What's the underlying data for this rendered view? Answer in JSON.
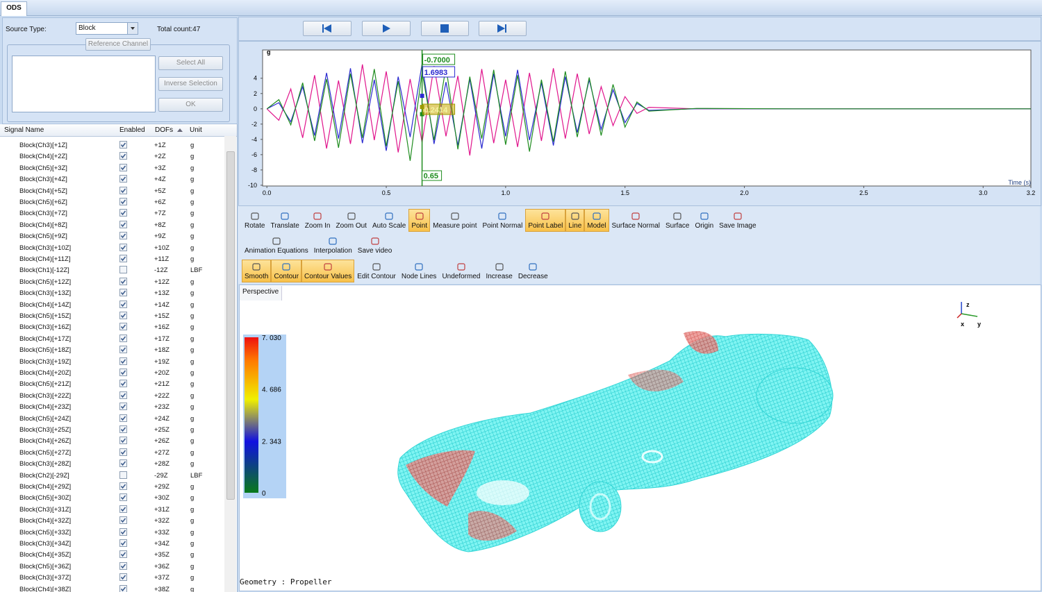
{
  "tab": "ODS",
  "source": {
    "label": "Source Type:",
    "value": "Block",
    "total": "Total count:47"
  },
  "reference": {
    "title": "Reference Channel",
    "buttons": [
      "Select All",
      "Inverse Selection",
      "OK"
    ]
  },
  "table": {
    "headers": [
      "Signal Name",
      "Enabled",
      "DOFs",
      "Unit"
    ],
    "rows": [
      [
        "Block(Ch3)[+1Z]",
        true,
        "+1Z",
        "g"
      ],
      [
        "Block(Ch4)[+2Z]",
        true,
        "+2Z",
        "g"
      ],
      [
        "Block(Ch5)[+3Z]",
        true,
        "+3Z",
        "g"
      ],
      [
        "Block(Ch3)[+4Z]",
        true,
        "+4Z",
        "g"
      ],
      [
        "Block(Ch4)[+5Z]",
        true,
        "+5Z",
        "g"
      ],
      [
        "Block(Ch5)[+6Z]",
        true,
        "+6Z",
        "g"
      ],
      [
        "Block(Ch3)[+7Z]",
        true,
        "+7Z",
        "g"
      ],
      [
        "Block(Ch4)[+8Z]",
        true,
        "+8Z",
        "g"
      ],
      [
        "Block(Ch5)[+9Z]",
        true,
        "+9Z",
        "g"
      ],
      [
        "Block(Ch3)[+10Z]",
        true,
        "+10Z",
        "g"
      ],
      [
        "Block(Ch4)[+11Z]",
        true,
        "+11Z",
        "g"
      ],
      [
        "Block(Ch1)[-12Z]",
        false,
        "-12Z",
        "LBF"
      ],
      [
        "Block(Ch5)[+12Z]",
        true,
        "+12Z",
        "g"
      ],
      [
        "Block(Ch3)[+13Z]",
        true,
        "+13Z",
        "g"
      ],
      [
        "Block(Ch4)[+14Z]",
        true,
        "+14Z",
        "g"
      ],
      [
        "Block(Ch5)[+15Z]",
        true,
        "+15Z",
        "g"
      ],
      [
        "Block(Ch3)[+16Z]",
        true,
        "+16Z",
        "g"
      ],
      [
        "Block(Ch4)[+17Z]",
        true,
        "+17Z",
        "g"
      ],
      [
        "Block(Ch5)[+18Z]",
        true,
        "+18Z",
        "g"
      ],
      [
        "Block(Ch3)[+19Z]",
        true,
        "+19Z",
        "g"
      ],
      [
        "Block(Ch4)[+20Z]",
        true,
        "+20Z",
        "g"
      ],
      [
        "Block(Ch5)[+21Z]",
        true,
        "+21Z",
        "g"
      ],
      [
        "Block(Ch3)[+22Z]",
        true,
        "+22Z",
        "g"
      ],
      [
        "Block(Ch4)[+23Z]",
        true,
        "+23Z",
        "g"
      ],
      [
        "Block(Ch5)[+24Z]",
        true,
        "+24Z",
        "g"
      ],
      [
        "Block(Ch3)[+25Z]",
        true,
        "+25Z",
        "g"
      ],
      [
        "Block(Ch4)[+26Z]",
        true,
        "+26Z",
        "g"
      ],
      [
        "Block(Ch5)[+27Z]",
        true,
        "+27Z",
        "g"
      ],
      [
        "Block(Ch3)[+28Z]",
        true,
        "+28Z",
        "g"
      ],
      [
        "Block(Ch2)[-29Z]",
        false,
        "-29Z",
        "LBF"
      ],
      [
        "Block(Ch4)[+29Z]",
        true,
        "+29Z",
        "g"
      ],
      [
        "Block(Ch5)[+30Z]",
        true,
        "+30Z",
        "g"
      ],
      [
        "Block(Ch3)[+31Z]",
        true,
        "+31Z",
        "g"
      ],
      [
        "Block(Ch4)[+32Z]",
        true,
        "+32Z",
        "g"
      ],
      [
        "Block(Ch5)[+33Z]",
        true,
        "+33Z",
        "g"
      ],
      [
        "Block(Ch3)[+34Z]",
        true,
        "+34Z",
        "g"
      ],
      [
        "Block(Ch4)[+35Z]",
        true,
        "+35Z",
        "g"
      ],
      [
        "Block(Ch5)[+36Z]",
        true,
        "+36Z",
        "g"
      ],
      [
        "Block(Ch3)[+37Z]",
        true,
        "+37Z",
        "g"
      ],
      [
        "Block(Ch4)[+38Z]",
        true,
        "+38Z",
        "g"
      ]
    ]
  },
  "chart_data": {
    "type": "line",
    "y_label": "g",
    "x_label": "Time (s)",
    "x": [
      0,
      0.05,
      0.1,
      0.15,
      0.2,
      0.25,
      0.3,
      0.35,
      0.4,
      0.45,
      0.5,
      0.55,
      0.6,
      0.65,
      0.7,
      0.75,
      0.8,
      0.85,
      0.9,
      0.95,
      1.0,
      1.05,
      1.1,
      1.15,
      1.2,
      1.25,
      1.3,
      1.35,
      1.4,
      1.45,
      1.5,
      1.55,
      1.6,
      1.8,
      2.2,
      2.6,
      3.0,
      3.2
    ],
    "series": [
      {
        "color": "#e0148c",
        "values": [
          0,
          -1.5,
          2.6,
          -3.8,
          4.4,
          -5.2,
          3.7,
          -4.6,
          5.8,
          -4.1,
          4.9,
          -5.7,
          3.9,
          -4.4,
          5.6,
          -3.6,
          4.3,
          -6.1,
          5.2,
          -4.5,
          3.8,
          -5.0,
          4.7,
          -4.2,
          5.3,
          -3.9,
          4.6,
          -3.3,
          2.9,
          -2.2,
          1.6,
          -0.6,
          0.2,
          0,
          0,
          0,
          0,
          0
        ]
      },
      {
        "color": "#2a2ad0",
        "values": [
          0,
          0.8,
          -1.7,
          2.9,
          -3.5,
          4.7,
          -3.9,
          5.3,
          -4.5,
          3.8,
          -5.5,
          4.2,
          -3.7,
          5.9,
          -4.6,
          3.5,
          -4.8,
          3.9,
          -5.2,
          4.6,
          -3.6,
          5.1,
          -4.1,
          3.4,
          -4.8,
          4.2,
          -3.1,
          3.8,
          -2.7,
          2.5,
          -1.8,
          0.7,
          -0.2,
          0.02,
          0,
          0,
          0,
          0
        ]
      },
      {
        "color": "#1e8c1e",
        "values": [
          0,
          1.2,
          -2.1,
          3.4,
          -4.2,
          3.9,
          -5.1,
          4.6,
          -3.8,
          5.2,
          -4.9,
          3.6,
          -6.8,
          4.8,
          -4.1,
          5.5,
          -5.3,
          4.2,
          -3.9,
          5.1,
          -4.7,
          4.4,
          -5.6,
          3.8,
          -4.3,
          4.9,
          -3.7,
          4.1,
          -3.5,
          3.2,
          -2.4,
          0.9,
          -0.3,
          0.05,
          0,
          0,
          0,
          0
        ]
      }
    ],
    "xlim": [
      -0.018,
      3.2
    ],
    "xticks": [
      {
        "value": 0,
        "label": "0.0"
      },
      0.5,
      {
        "value": 1,
        "label": "1.0"
      },
      1.5,
      {
        "value": 2,
        "label": "2.0"
      },
      2.5,
      {
        "value": 3,
        "label": "3.0"
      },
      3.2
    ],
    "ylim": [
      -10.1,
      7.7
    ],
    "yticks": [
      -10,
      -8,
      -6,
      -4,
      -2,
      0,
      2,
      4
    ],
    "cursor": {
      "value": 0.65,
      "label": "0.65",
      "color": "#1e8c1e"
    },
    "readouts": [
      {
        "value": -0.7,
        "label": "-0.7000",
        "color": "#1e8c1e"
      },
      {
        "value": 1.6983,
        "label": "1.6983",
        "color": "#2a2ad0"
      },
      {
        "value": 0.2414,
        "label": "0.2414",
        "color": "#9a9a00"
      }
    ]
  },
  "toolbar": {
    "rows": [
      [
        {
          "label": "Rotate",
          "active": false
        },
        {
          "label": "Translate",
          "active": false
        },
        {
          "label": "Zoom In",
          "active": false
        },
        {
          "label": "Zoom Out",
          "active": false
        },
        {
          "label": "Auto Scale",
          "active": false
        },
        {
          "label": "Point",
          "active": true
        },
        {
          "label": "Measure point",
          "active": false
        },
        {
          "label": "Point Normal",
          "active": false
        },
        {
          "label": "Point Label",
          "active": true
        },
        {
          "label": "Line",
          "active": true
        },
        {
          "label": "Model",
          "active": true
        },
        {
          "label": "Surface Normal",
          "active": false
        },
        {
          "label": "Surface",
          "active": false
        },
        {
          "label": "Origin",
          "active": false
        },
        {
          "label": "Save Image",
          "active": false
        }
      ],
      [
        {
          "label": "Animation Equations",
          "active": false
        },
        {
          "label": "Interpolation",
          "active": false
        },
        {
          "label": "Save video",
          "active": false
        }
      ],
      [
        {
          "label": "Smooth",
          "active": true
        },
        {
          "label": "Contour",
          "active": true
        },
        {
          "label": "Contour Values",
          "active": true
        },
        {
          "label": "Edit Contour",
          "active": false
        },
        {
          "label": "Node Lines",
          "active": false
        },
        {
          "label": "Undeformed",
          "active": false
        },
        {
          "label": "Increase",
          "active": false
        },
        {
          "label": "Decrease",
          "active": false
        }
      ]
    ]
  },
  "view": {
    "label": "Perspective",
    "colorbar": {
      "lim": [
        0,
        7.03
      ],
      "ticks": [
        {
          "value": 7.03,
          "label": "7. 030"
        },
        {
          "value": 4.686,
          "label": "4. 686"
        },
        {
          "value": 2.343,
          "label": "2. 343"
        },
        0
      ]
    },
    "triad": [
      "z",
      "x",
      "y"
    ],
    "geometry": "Geometry : Propeller"
  }
}
